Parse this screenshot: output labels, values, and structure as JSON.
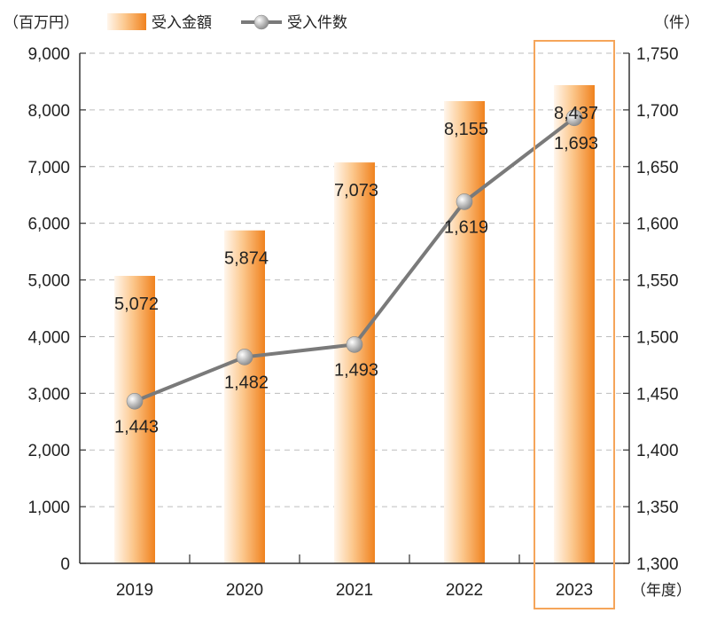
{
  "chart_data": {
    "type": "bar",
    "categories": [
      "2019",
      "2020",
      "2021",
      "2022",
      "2023"
    ],
    "series": [
      {
        "name": "受入金額",
        "type": "bar",
        "axis": "left",
        "values": [
          5072,
          5874,
          7073,
          8155,
          8437
        ],
        "labels": [
          "5,072",
          "5,874",
          "7,073",
          "8,155",
          "8,437"
        ]
      },
      {
        "name": "受入件数",
        "type": "line",
        "axis": "right",
        "values": [
          1443,
          1482,
          1493,
          1619,
          1693
        ],
        "labels": [
          "1,443",
          "1,482",
          "1,493",
          "1,619",
          "1,693"
        ]
      }
    ],
    "y_left": {
      "unit": "（百万円）",
      "range": [
        0,
        9000
      ],
      "ticks": [
        0,
        1000,
        2000,
        3000,
        4000,
        5000,
        6000,
        7000,
        8000,
        9000
      ],
      "tick_labels": [
        "0",
        "1,000",
        "2,000",
        "3,000",
        "4,000",
        "5,000",
        "6,000",
        "7,000",
        "8,000",
        "9,000"
      ]
    },
    "y_right": {
      "unit": "（件）",
      "range": [
        1300,
        1750
      ],
      "ticks": [
        1300,
        1350,
        1400,
        1450,
        1500,
        1550,
        1600,
        1650,
        1700,
        1750
      ],
      "tick_labels": [
        "1,300",
        "1,350",
        "1,400",
        "1,450",
        "1,500",
        "1,550",
        "1,600",
        "1,650",
        "1,700",
        "1,750"
      ]
    },
    "x_unit": "（年度）",
    "highlight_category": "2023",
    "grid": "horizontal dashed",
    "legend_position": "top",
    "colors": {
      "bar_light": "#fff2e4",
      "bar_dark": "#f0821e",
      "line": "#7a7a7a",
      "highlight_box": "#f5a55a",
      "grid": "#bdbdbd"
    }
  }
}
